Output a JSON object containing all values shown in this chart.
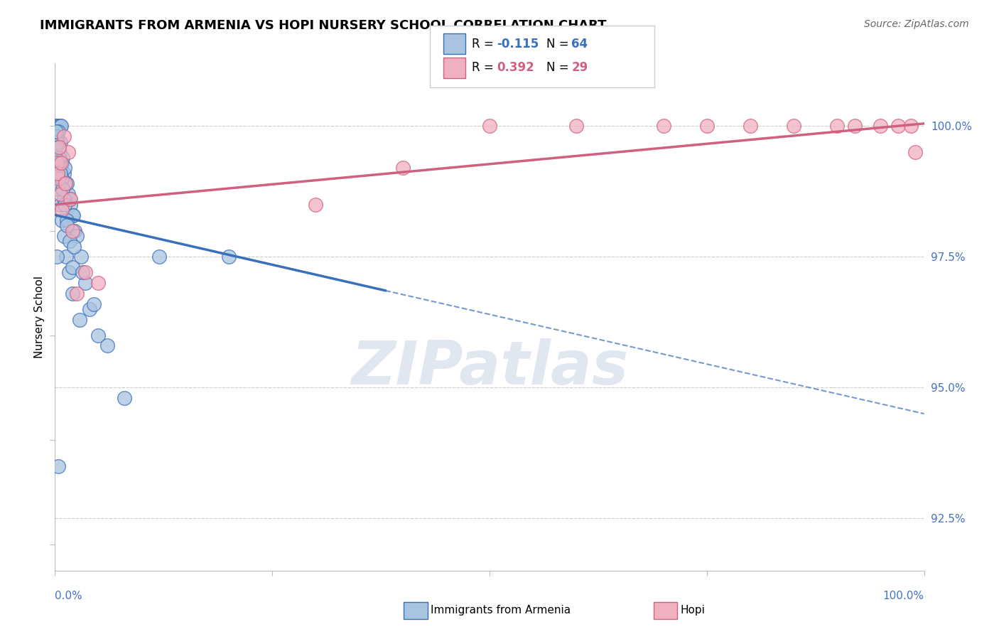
{
  "title": "IMMIGRANTS FROM ARMENIA VS HOPI NURSERY SCHOOL CORRELATION CHART",
  "source": "Source: ZipAtlas.com",
  "ylabel": "Nursery School",
  "legend_blue_r": "-0.115",
  "legend_blue_n": "64",
  "legend_pink_r": "0.392",
  "legend_pink_n": "29",
  "legend_label_blue": "Immigrants from Armenia",
  "legend_label_pink": "Hopi",
  "y_tick_labels": [
    "92.5%",
    "95.0%",
    "97.5%",
    "100.0%"
  ],
  "y_tick_values": [
    92.5,
    95.0,
    97.5,
    100.0
  ],
  "xlim": [
    0.0,
    100.0
  ],
  "ylim": [
    91.5,
    101.2
  ],
  "blue_color": "#a8c4e0",
  "blue_line_color": "#3a6fba",
  "pink_color": "#f0b0c0",
  "pink_line_color": "#d06080",
  "blue_scatter_x": [
    0.2,
    0.3,
    0.25,
    0.5,
    0.6,
    0.7,
    0.15,
    0.35,
    0.45,
    0.55,
    0.8,
    1.0,
    1.2,
    1.5,
    1.8,
    2.0,
    2.3,
    0.4,
    0.6,
    0.9,
    1.1,
    1.4,
    1.7,
    2.1,
    2.5,
    3.0,
    0.2,
    0.3,
    0.5,
    0.7,
    0.4,
    0.6,
    0.8,
    1.0,
    1.3,
    1.6,
    2.0,
    2.8,
    0.25,
    0.55,
    0.75,
    1.05,
    1.35,
    1.65,
    2.05,
    12.0,
    20.0,
    3.5,
    4.0,
    5.0,
    0.15,
    0.35,
    0.45,
    0.65,
    0.85,
    1.1,
    1.4,
    2.2,
    3.2,
    4.5,
    6.0,
    8.0,
    0.2,
    0.4
  ],
  "blue_scatter_y": [
    100.0,
    100.0,
    100.0,
    100.0,
    100.0,
    100.0,
    99.8,
    99.7,
    99.6,
    99.5,
    99.3,
    99.1,
    98.9,
    98.7,
    98.5,
    98.3,
    98.0,
    99.9,
    99.7,
    99.4,
    99.2,
    98.9,
    98.6,
    98.3,
    97.9,
    97.5,
    99.8,
    99.6,
    99.3,
    99.0,
    98.8,
    98.5,
    98.2,
    97.9,
    97.5,
    97.2,
    96.8,
    96.3,
    99.7,
    99.3,
    99.0,
    98.6,
    98.2,
    97.8,
    97.3,
    97.5,
    97.5,
    97.0,
    96.5,
    96.0,
    99.9,
    99.6,
    99.4,
    99.1,
    98.8,
    98.5,
    98.1,
    97.7,
    97.2,
    96.6,
    95.8,
    94.8,
    97.5,
    93.5
  ],
  "pink_scatter_x": [
    0.2,
    0.4,
    0.6,
    0.8,
    1.0,
    1.5,
    2.0,
    0.3,
    0.5,
    0.7,
    1.2,
    1.8,
    2.5,
    3.5,
    5.0,
    30.0,
    50.0,
    60.0,
    70.0,
    75.0,
    80.0,
    85.0,
    90.0,
    92.0,
    95.0,
    97.0,
    98.5,
    99.0,
    40.0
  ],
  "pink_scatter_y": [
    99.3,
    99.0,
    98.7,
    98.4,
    99.8,
    99.5,
    98.0,
    99.1,
    99.6,
    99.3,
    98.9,
    98.6,
    96.8,
    97.2,
    97.0,
    98.5,
    100.0,
    100.0,
    100.0,
    100.0,
    100.0,
    100.0,
    100.0,
    100.0,
    100.0,
    100.0,
    100.0,
    99.5,
    99.2
  ],
  "blue_trend_start_x": 0.0,
  "blue_trend_start_y": 98.3,
  "blue_trend_end_x": 100.0,
  "blue_trend_end_y": 94.5,
  "blue_solid_end_x": 38.0,
  "pink_trend_start_x": 0.0,
  "pink_trend_start_y": 98.5,
  "pink_trend_end_x": 100.0,
  "pink_trend_end_y": 100.05,
  "watermark": "ZIPatlas",
  "background_color": "#ffffff",
  "grid_color": "#cccccc",
  "title_fontsize": 13,
  "axis_label_color": "#4472c4",
  "right_tick_color": "#4472c4"
}
